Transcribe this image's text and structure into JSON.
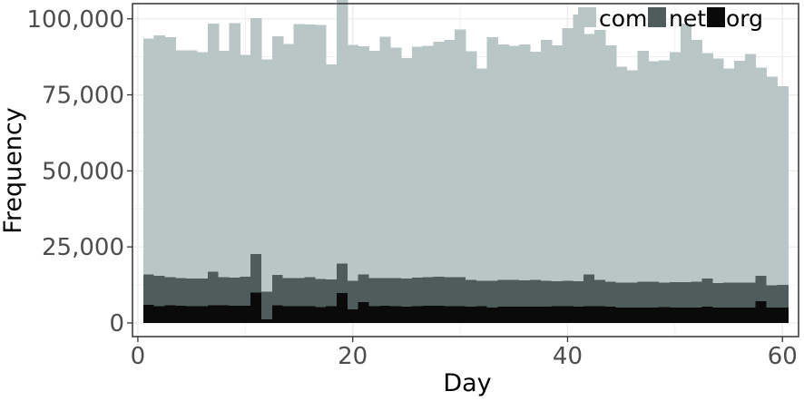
{
  "chart_data": {
    "type": "bar",
    "stacked": true,
    "xlabel": "Day",
    "ylabel": "Frequency",
    "xlim": [
      -0.5,
      61.5
    ],
    "ylim": [
      -4500,
      105000
    ],
    "x_ticks": [
      0,
      20,
      40,
      60
    ],
    "x_tick_labels": [
      "0",
      "20",
      "40",
      "60"
    ],
    "y_ticks": [
      0,
      25000,
      50000,
      75000,
      100000
    ],
    "y_tick_labels": [
      "0",
      "25,000",
      "50,000",
      "75,000",
      "100,000"
    ],
    "grid": true,
    "legend_position": "top-right",
    "legend_entries": [
      "com",
      "net",
      "org"
    ],
    "colors": {
      "com": "#b8c6c6",
      "net": "#4f5c5c",
      "org": "#0a0a0a",
      "grid": "#ebebeb",
      "axis": "#333333"
    },
    "days": [
      1,
      2,
      3,
      4,
      5,
      6,
      7,
      8,
      9,
      10,
      11,
      12,
      13,
      14,
      15,
      16,
      17,
      18,
      19,
      20,
      21,
      22,
      23,
      24,
      25,
      26,
      27,
      28,
      29,
      30,
      31,
      32,
      33,
      34,
      35,
      36,
      37,
      38,
      39,
      40,
      41,
      42,
      43,
      44,
      45,
      46,
      47,
      48,
      49,
      50,
      51,
      52,
      53,
      54,
      55,
      56,
      57,
      58,
      59,
      60
    ],
    "series": [
      {
        "name": "org",
        "values": [
          6000,
          5500,
          5800,
          5600,
          5500,
          5500,
          5800,
          5800,
          5700,
          5600,
          10000,
          1200,
          5800,
          5500,
          5500,
          5500,
          5200,
          5500,
          9800,
          4500,
          6800,
          5500,
          5600,
          5500,
          5400,
          5500,
          5700,
          5600,
          5500,
          5500,
          5400,
          5500,
          5000,
          5300,
          5400,
          5300,
          5300,
          5300,
          5500,
          5500,
          5300,
          5500,
          5500,
          5300,
          5000,
          5000,
          5000,
          5100,
          5200,
          5100,
          5000,
          5000,
          5300,
          5000,
          5000,
          5000,
          5100,
          7200,
          5000,
          5000
        ]
      },
      {
        "name": "net",
        "values": [
          10000,
          10000,
          9200,
          9100,
          9100,
          9100,
          11000,
          9200,
          9200,
          9600,
          12700,
          9000,
          10000,
          9200,
          9300,
          9500,
          9300,
          8800,
          9700,
          9400,
          9200,
          9300,
          9200,
          9300,
          9200,
          9400,
          9300,
          9600,
          9500,
          9500,
          8700,
          8400,
          8800,
          8900,
          8700,
          8700,
          8900,
          8500,
          8200,
          8400,
          8400,
          10500,
          8600,
          8200,
          8200,
          8300,
          8500,
          8400,
          8100,
          8300,
          8400,
          8600,
          9300,
          8100,
          8200,
          8200,
          8200,
          8300,
          7400,
          7500
        ]
      },
      {
        "name": "com",
        "values": [
          77500,
          79000,
          79000,
          75000,
          75000,
          74500,
          81700,
          74500,
          83700,
          73000,
          77500,
          76500,
          78500,
          77000,
          83500,
          83200,
          83500,
          70700,
          86700,
          77500,
          75000,
          74700,
          79300,
          75800,
          72500,
          76000,
          76200,
          77300,
          78000,
          81500,
          75200,
          69700,
          80200,
          77300,
          77000,
          77500,
          75000,
          79200,
          77600,
          83000,
          87700,
          79000,
          82200,
          77800,
          71000,
          69700,
          76000,
          72500,
          73000,
          75600,
          85000,
          79500,
          74200,
          73800,
          70500,
          73000,
          75200,
          68500,
          68600,
          65300
        ]
      }
    ]
  }
}
